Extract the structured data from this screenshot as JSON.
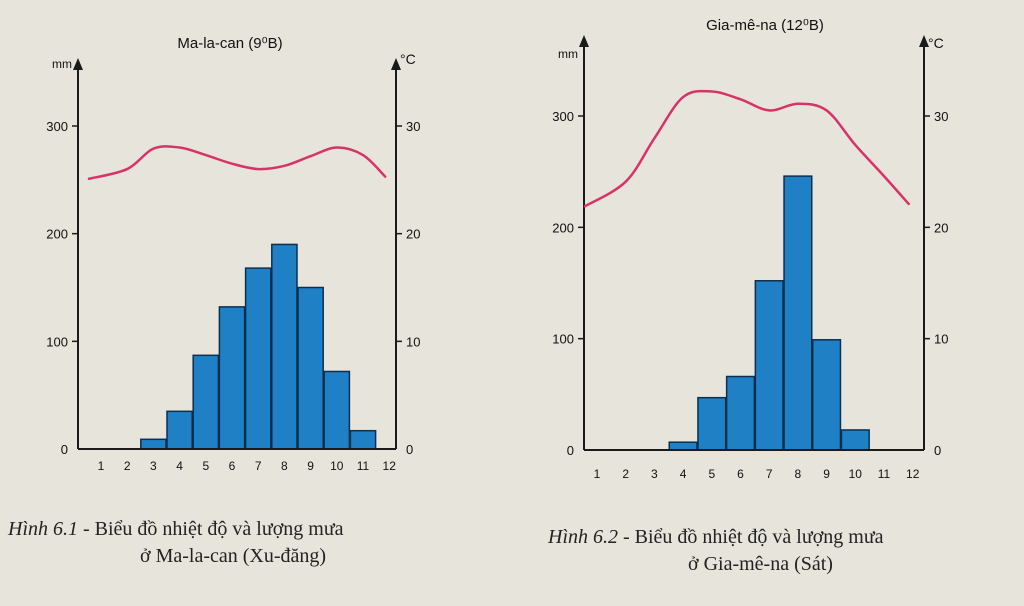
{
  "chart_data": [
    {
      "type": "bar",
      "title": "Ma-la-can (9⁰B)",
      "ylabel": "mm",
      "y2label": "°C",
      "categories": [
        "1",
        "2",
        "3",
        "4",
        "5",
        "6",
        "7",
        "8",
        "9",
        "10",
        "11",
        "12"
      ],
      "series": [
        {
          "kind": "precipitation",
          "axis": "left",
          "values": [
            0,
            0,
            9,
            35,
            87,
            132,
            168,
            190,
            150,
            72,
            17,
            0
          ]
        },
        {
          "kind": "temperature",
          "axis": "right",
          "values": [
            25.1,
            26.0,
            27.9,
            28.0,
            27.3,
            26.5,
            26.0,
            26.3,
            27.2,
            28.0,
            27.3,
            25.3
          ]
        }
      ],
      "ylim": [
        0,
        300
      ],
      "y2lim": [
        0,
        30
      ],
      "y_ticks": [
        "0",
        "100",
        "200",
        "300"
      ],
      "y2_ticks": [
        "0",
        "10",
        "20",
        "30"
      ],
      "caption_label": "Hình 6.1",
      "caption_text": "- Biểu đồ nhiệt độ và lượng mưa",
      "caption_sub": "ở Ma-la-can (Xu-đăng)"
    },
    {
      "type": "bar",
      "title": "Gia-mê-na (12⁰B)",
      "ylabel": "mm",
      "y2label": "°C",
      "categories": [
        "1",
        "2",
        "3",
        "4",
        "5",
        "6",
        "7",
        "8",
        "9",
        "10",
        "11",
        "12"
      ],
      "series": [
        {
          "kind": "precipitation",
          "axis": "left",
          "values": [
            0,
            0,
            0,
            7,
            47,
            66,
            152,
            246,
            99,
            18,
            0,
            0
          ]
        },
        {
          "kind": "temperature",
          "axis": "right",
          "values": [
            21.9,
            24.1,
            28.0,
            31.7,
            32.2,
            31.5,
            30.5,
            31.1,
            30.5,
            27.4,
            24.6,
            22.1
          ]
        }
      ],
      "ylim": [
        0,
        300
      ],
      "y2lim": [
        0,
        30
      ],
      "y_ticks": [
        "0",
        "100",
        "200",
        "300"
      ],
      "y2_ticks": [
        "0",
        "10",
        "20",
        "30"
      ],
      "caption_label": "Hình 6.2",
      "caption_text": "- Biểu đồ nhiệt độ và lượng mưa",
      "caption_sub": "ở Gia-mê-na (Sát)"
    }
  ],
  "colors": {
    "bar": "#1f80c6",
    "bar_edge": "#0d2f4e",
    "temp_line": "#d63368",
    "axis": "#1a1a1a"
  }
}
